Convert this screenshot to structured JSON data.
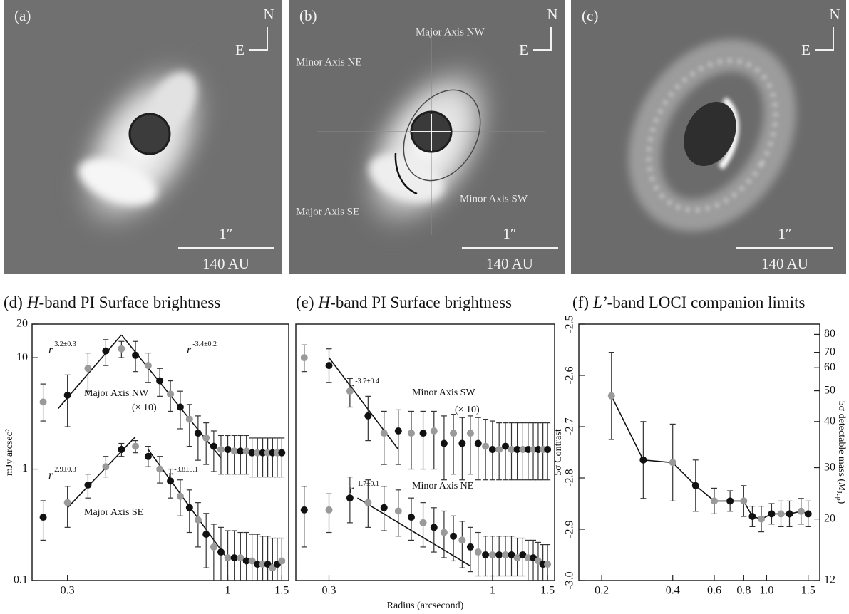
{
  "images": [
    {
      "label": "(a)",
      "north": "N",
      "east": "E",
      "scale_arcsec": "1″",
      "scale_au": "140 AU"
    },
    {
      "label": "(b)",
      "north": "N",
      "east": "E",
      "scale_arcsec": "1″",
      "scale_au": "140 AU",
      "annotations": [
        "Major Axis NW",
        "Minor Axis NE",
        "Major Axis SE",
        "Minor Axis SW"
      ]
    },
    {
      "label": "(c)",
      "north": "N",
      "east": "E",
      "scale_arcsec": "1″",
      "scale_au": "140 AU"
    }
  ],
  "chart_data": [
    {
      "type": "errorbar",
      "title": [
        "(d)",
        "H",
        "-band PI Surface brightness"
      ],
      "ylabel": "mJy arcsec²",
      "xlog": true,
      "ylog": true,
      "xlim": [
        0.23,
        1.58
      ],
      "ylim": [
        0.1,
        20
      ],
      "xticks": [
        0.3,
        1,
        1.5
      ],
      "yticks": [
        0.1,
        1,
        10,
        20
      ],
      "marker_colors": [
        "#9a9a9a",
        "#111111"
      ],
      "x": [
        0.25,
        0.3,
        0.35,
        0.4,
        0.45,
        0.5,
        0.55,
        0.6,
        0.65,
        0.7,
        0.75,
        0.8,
        0.85,
        0.9,
        0.95,
        1.0,
        1.05,
        1.1,
        1.15,
        1.2,
        1.25,
        1.3,
        1.35,
        1.4,
        1.45,
        1.5
      ],
      "series": [
        {
          "name": "Major Axis NW",
          "note": "(× 10)",
          "values": [
            4.0,
            4.6,
            8.0,
            11.5,
            12.0,
            10.5,
            8.5,
            6.2,
            4.7,
            3.6,
            2.8,
            2.1,
            1.9,
            1.6,
            1.5,
            1.5,
            1.45,
            1.45,
            1.45,
            1.4,
            1.4,
            1.4,
            1.4,
            1.4,
            1.4,
            1.4
          ],
          "upper": [
            5.8,
            7,
            11,
            14.5,
            14,
            14,
            11,
            8,
            6.2,
            5,
            3.8,
            3,
            2.6,
            2.2,
            2,
            2,
            2,
            2,
            2,
            1.9,
            1.9,
            1.9,
            1.9,
            1.9,
            1.9,
            1.9
          ],
          "lower": [
            2.7,
            2.4,
            5,
            8.5,
            10,
            7.5,
            6,
            4.5,
            3.3,
            2.3,
            1.6,
            1.2,
            1.1,
            0.95,
            0.9,
            0.9,
            0.9,
            0.9,
            0.9,
            0.85,
            0.85,
            0.85,
            0.85,
            0.85,
            0.85,
            0.85
          ]
        },
        {
          "name": "Major Axis SE",
          "values": [
            0.37,
            0.5,
            0.72,
            1.05,
            1.5,
            1.6,
            1.3,
            1.0,
            0.78,
            0.57,
            0.45,
            0.35,
            0.26,
            0.2,
            0.18,
            0.16,
            0.16,
            0.16,
            0.15,
            0.15,
            0.14,
            0.14,
            0.14,
            0.13,
            0.14,
            0.15
          ],
          "upper": [
            0.52,
            0.7,
            0.9,
            1.3,
            1.7,
            1.8,
            1.6,
            1.3,
            1.0,
            0.8,
            0.65,
            0.5,
            0.4,
            0.32,
            0.3,
            0.28,
            0.28,
            0.27,
            0.27,
            0.26,
            0.26,
            0.25,
            0.25,
            0.24,
            0.24,
            0.24
          ],
          "lower": [
            0.23,
            0.3,
            0.55,
            0.85,
            1.3,
            1.4,
            1.05,
            0.75,
            0.55,
            0.38,
            0.27,
            0.2,
            0.13,
            0.1,
            0.1,
            0.1,
            0.1,
            0.1,
            0.1,
            0.1,
            0.1,
            0.1,
            0.1,
            0.1,
            0.1,
            0.1
          ]
        }
      ],
      "fits": [
        {
          "text": "r",
          "exponent": "3.2±0.3",
          "x": [
            0.28,
            0.45
          ],
          "y": [
            3.5,
            16
          ]
        },
        {
          "text": "r",
          "exponent": "-3.4±0.2",
          "x": [
            0.45,
            0.95
          ],
          "y": [
            16,
            1.26
          ]
        },
        {
          "text": "r",
          "exponent": "2.9±0.3",
          "x": [
            0.3,
            0.5
          ],
          "y": [
            0.45,
            1.95
          ]
        },
        {
          "text": "r",
          "exponent": "-3.8±0.1",
          "x": [
            0.55,
            1.0
          ],
          "y": [
            1.5,
            0.155
          ]
        }
      ]
    },
    {
      "type": "errorbar",
      "title": [
        "(e)",
        "H",
        "-band PI Surface brightness"
      ],
      "xlabel": "Radius (arcsecond)",
      "xlog": true,
      "ylog": true,
      "xlim": [
        0.235,
        1.58
      ],
      "ylim": [
        0.1,
        20
      ],
      "xticks": [
        0.3,
        1,
        1.5
      ],
      "marker_colors": [
        "#9a9a9a",
        "#111111"
      ],
      "x": [
        0.25,
        0.3,
        0.35,
        0.4,
        0.45,
        0.5,
        0.55,
        0.6,
        0.65,
        0.7,
        0.75,
        0.8,
        0.85,
        0.9,
        0.95,
        1.0,
        1.05,
        1.1,
        1.15,
        1.2,
        1.25,
        1.3,
        1.35,
        1.4,
        1.45,
        1.5
      ],
      "series": [
        {
          "name": "Minor Axis SW",
          "note": "(× 10)",
          "values": [
            10,
            8.5,
            5.0,
            3.0,
            2.1,
            2.2,
            2.1,
            2.1,
            2.2,
            1.7,
            2.1,
            1.7,
            2.1,
            1.7,
            1.6,
            1.5,
            1.5,
            1.6,
            1.5,
            1.5,
            1.5,
            1.5,
            1.5,
            1.5,
            1.5,
            1.5
          ],
          "upper": [
            13,
            12,
            6.5,
            4.5,
            3.3,
            3.4,
            3.3,
            3.3,
            3.3,
            3,
            3.1,
            2.9,
            3,
            2.9,
            2.8,
            2.7,
            2.6,
            2.6,
            2.6,
            2.6,
            2.6,
            2.6,
            2.6,
            2.6,
            2.6,
            2.6
          ],
          "lower": [
            7.5,
            6,
            3.6,
            1.8,
            1.1,
            1.1,
            1.0,
            1.0,
            1.0,
            0.8,
            0.9,
            0.8,
            0.9,
            0.8,
            0.8,
            0.8,
            0.8,
            0.8,
            0.8,
            0.8,
            0.8,
            0.8,
            0.8,
            0.8,
            0.8,
            0.8
          ]
        },
        {
          "name": "Minor Axis NE",
          "values": [
            0.43,
            0.43,
            0.55,
            0.5,
            0.45,
            0.42,
            0.37,
            0.33,
            0.3,
            0.27,
            0.25,
            0.23,
            0.2,
            0.18,
            0.17,
            0.17,
            0.17,
            0.17,
            0.17,
            0.16,
            0.17,
            0.16,
            0.16,
            0.15,
            0.14,
            0.14
          ],
          "upper": [
            0.7,
            0.6,
            0.85,
            0.8,
            0.7,
            0.65,
            0.55,
            0.5,
            0.45,
            0.42,
            0.38,
            0.34,
            0.3,
            0.27,
            0.25,
            0.25,
            0.25,
            0.25,
            0.25,
            0.24,
            0.24,
            0.23,
            0.23,
            0.22,
            0.21,
            0.21
          ],
          "lower": [
            0.2,
            0.27,
            0.33,
            0.3,
            0.28,
            0.25,
            0.23,
            0.2,
            0.18,
            0.16,
            0.15,
            0.13,
            0.12,
            0.11,
            0.11,
            0.11,
            0.11,
            0.11,
            0.11,
            0.11,
            0.11,
            0.1,
            0.1,
            0.1,
            0.1,
            0.1
          ]
        }
      ],
      "fits": [
        {
          "text": "r",
          "exponent": "-3.7±0.4",
          "x": [
            0.3,
            0.5
          ],
          "y": [
            10,
            1.5
          ]
        },
        {
          "text": "r",
          "exponent": "-1.7±0.1",
          "x": [
            0.37,
            0.85
          ],
          "y": [
            0.55,
            0.135
          ]
        }
      ]
    },
    {
      "type": "line",
      "title": [
        "(f)",
        "L’",
        "-band LOCI companion limits"
      ],
      "ylabel": "5σ Contrast",
      "y2label": [
        "5σ detectable mass (",
        "M",
        "Jup",
        ")"
      ],
      "xlog": true,
      "ylog": false,
      "xlim": [
        0.16,
        1.68
      ],
      "ylim": [
        -3.0,
        -2.5
      ],
      "xticks": [
        0.2,
        0.4,
        0.6,
        0.8,
        {
          "value": 1,
          "label": "1.0"
        },
        1.5
      ],
      "yticks": [
        {
          "value": -3.0,
          "label": "-3.0"
        },
        -2.9,
        -2.8,
        -2.7,
        -2.6,
        -2.5
      ],
      "y2ticks": [
        12,
        20,
        30,
        40,
        50,
        60,
        70,
        80
      ],
      "y2_contrast": [
        -3.0,
        -2.88,
        -2.78,
        -2.69,
        -2.63,
        -2.585,
        -2.555,
        -2.52
      ],
      "color": "#111111",
      "marker_colors": [
        "#9a9a9a",
        "#111111"
      ],
      "x": [
        0.22,
        0.3,
        0.4,
        0.5,
        0.6,
        0.7,
        0.8,
        0.87,
        0.95,
        1.05,
        1.15,
        1.25,
        1.4,
        1.5
      ],
      "series": [
        {
          "values": [
            -2.64,
            -2.765,
            -2.77,
            -2.815,
            -2.845,
            -2.845,
            -2.845,
            -2.875,
            -2.88,
            -2.87,
            -2.87,
            -2.87,
            -2.865,
            -2.87
          ],
          "errors": [
            0.085,
            0.075,
            0.075,
            0.05,
            0.025,
            0.02,
            0.03,
            0.02,
            0.025,
            0.02,
            0.025,
            0.025,
            0.025,
            0.025
          ]
        }
      ]
    }
  ]
}
